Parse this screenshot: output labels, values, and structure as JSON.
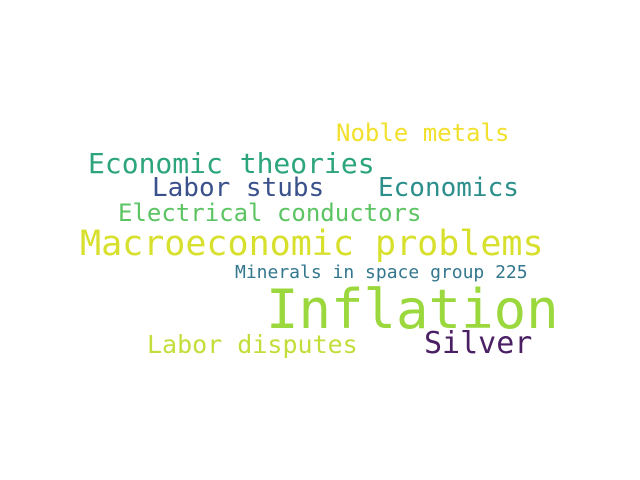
{
  "words": {
    "noble_metals": {
      "text": "Noble metals",
      "color": "#f2e02e"
    },
    "economic_theories": {
      "text": "Economic theories",
      "color": "#2ca57c"
    },
    "labor_stubs": {
      "text": "Labor stubs",
      "color": "#3b518b"
    },
    "economics": {
      "text": "Economics",
      "color": "#2c8f8c"
    },
    "electrical_conductors": {
      "text": "Electrical conductors",
      "color": "#5cc463"
    },
    "macroeconomic_problems": {
      "text": "Macroeconomic problems",
      "color": "#d8e02e"
    },
    "minerals_space_group": {
      "text": "Minerals in space group 225",
      "color": "#33778e"
    },
    "inflation": {
      "text": "Inflation",
      "color": "#9ad83d"
    },
    "labor_disputes": {
      "text": "Labor disputes",
      "color": "#c3dd3a"
    },
    "silver": {
      "text": "Silver",
      "color": "#4a1f63"
    }
  }
}
